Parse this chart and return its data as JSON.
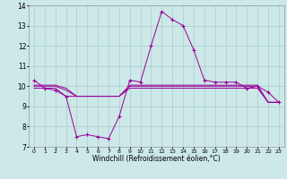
{
  "xlabel": "Windchill (Refroidissement éolien,°C)",
  "x_hours": [
    0,
    1,
    2,
    3,
    4,
    5,
    6,
    7,
    8,
    9,
    10,
    11,
    12,
    13,
    14,
    15,
    16,
    17,
    18,
    19,
    20,
    21,
    22,
    23
  ],
  "main_line": [
    10.3,
    9.9,
    9.8,
    9.5,
    7.5,
    7.6,
    7.5,
    7.4,
    8.5,
    10.3,
    10.2,
    12.0,
    13.7,
    13.3,
    13.0,
    11.8,
    10.3,
    10.2,
    10.2,
    10.2,
    9.9,
    10.0,
    9.7,
    9.2
  ],
  "flat_line1": [
    9.9,
    9.9,
    9.9,
    9.5,
    9.5,
    9.5,
    9.5,
    9.5,
    9.5,
    9.9,
    9.9,
    9.9,
    9.9,
    9.9,
    9.9,
    9.9,
    9.9,
    9.9,
    9.9,
    9.9,
    9.9,
    9.9,
    9.2,
    9.2
  ],
  "flat_line2": [
    10.0,
    10.0,
    10.0,
    9.8,
    9.5,
    9.5,
    9.5,
    9.5,
    9.5,
    10.0,
    10.0,
    10.0,
    10.0,
    10.0,
    10.0,
    10.0,
    10.0,
    10.0,
    10.0,
    10.0,
    10.0,
    10.0,
    9.2,
    9.2
  ],
  "flat_line3": [
    10.05,
    10.05,
    10.05,
    9.9,
    9.5,
    9.5,
    9.5,
    9.5,
    9.5,
    10.05,
    10.05,
    10.05,
    10.05,
    10.05,
    10.05,
    10.05,
    10.05,
    10.05,
    10.05,
    10.05,
    10.05,
    10.05,
    9.2,
    9.2
  ],
  "line_color": "#990099",
  "bg_color": "#cce8e8",
  "grid_color": "#aacccc",
  "ylim": [
    7,
    14
  ],
  "xlim": [
    -0.5,
    23.5
  ]
}
